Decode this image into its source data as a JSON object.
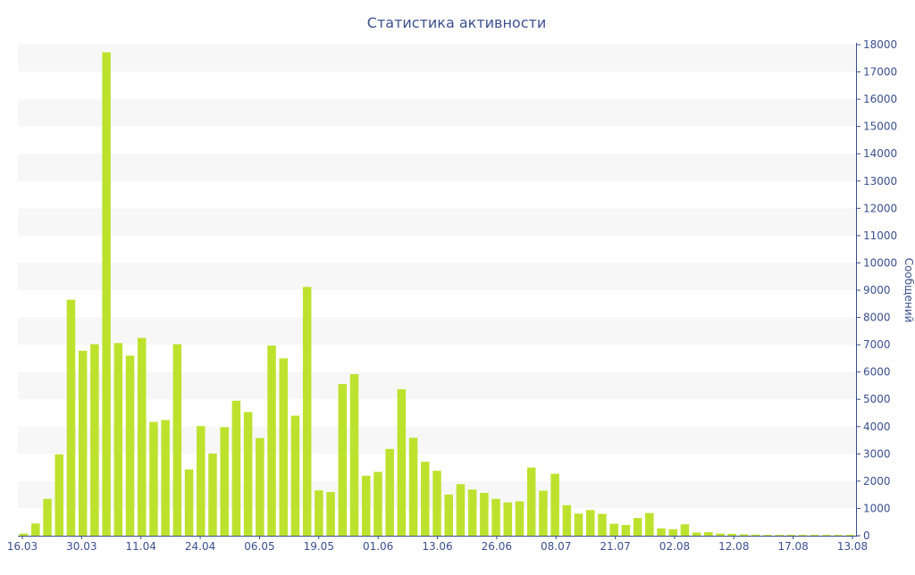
{
  "chart_data": {
    "type": "bar",
    "title": "Статистика активности",
    "xlabel": "",
    "ylabel": "Сообщений",
    "y_axis_side": "right",
    "ylim": [
      0,
      18000
    ],
    "y_ticks": [
      0,
      1000,
      2000,
      3000,
      4000,
      5000,
      6000,
      7000,
      8000,
      9000,
      10000,
      11000,
      12000,
      13000,
      14000,
      15000,
      16000,
      17000,
      18000
    ],
    "x_tick_labels": [
      "16.03",
      "30.03",
      "11.04",
      "24.04",
      "06.05",
      "19.05",
      "01.06",
      "13.06",
      "26.06",
      "08.07",
      "21.07",
      "02.08",
      "12.08",
      "17.08",
      "13.08"
    ],
    "bar_color": "#bde22e",
    "grid_band_color": "#f7f7f7",
    "axis_color": "#3b4f8c",
    "grid": true,
    "legend": false,
    "values": [
      80,
      450,
      1350,
      2980,
      8650,
      6780,
      7020,
      17720,
      7060,
      6600,
      7250,
      4170,
      4240,
      7020,
      2430,
      4020,
      3010,
      3980,
      4950,
      4530,
      3580,
      6970,
      6500,
      4400,
      9120,
      1660,
      1600,
      5560,
      5920,
      2200,
      2340,
      3180,
      5370,
      3590,
      2710,
      2380,
      1510,
      1890,
      1690,
      1570,
      1350,
      1220,
      1260,
      2500,
      1650,
      2270,
      1120,
      810,
      940,
      800,
      440,
      390,
      650,
      830,
      270,
      240,
      420,
      120,
      130,
      80,
      70,
      50,
      40,
      30,
      30,
      30,
      30,
      30,
      30,
      30,
      30
    ]
  }
}
